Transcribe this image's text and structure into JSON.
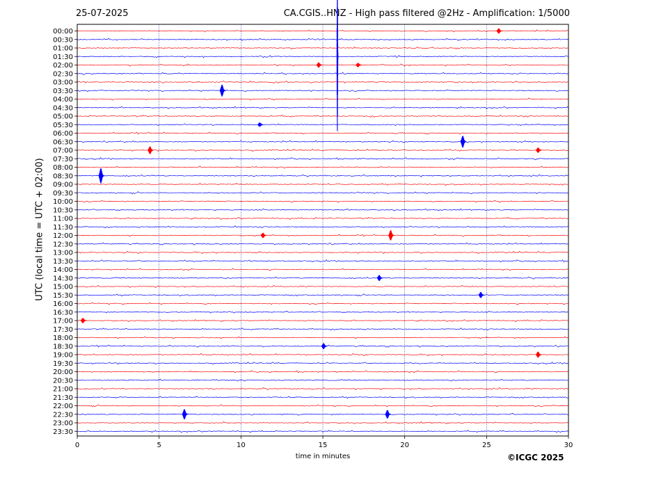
{
  "header": {
    "date": "25-07-2025",
    "title": "CA.CGIS..HNZ - High pass filtered @2Hz - Amplification: 1/5000"
  },
  "footer": {
    "copyright": "©ICGC 2025"
  },
  "colors": {
    "trace_a": "#ff0000",
    "trace_b": "#0000ff",
    "grid": "#000080",
    "frame": "#000000"
  },
  "chart_data": {
    "type": "line",
    "title": "CA.CGIS..HNZ - High pass filtered @2Hz - Amplification: 1/5000",
    "xlabel": "time in minutes",
    "ylabel": "UTC (local time = UTC + 02:00)",
    "xlim": [
      0,
      30
    ],
    "x_ticks": [
      "0",
      "5",
      "10",
      "15",
      "20",
      "25",
      "30"
    ],
    "grid": "vertical dotted at 5-minute intervals",
    "rows": [
      "00:00",
      "00:30",
      "01:00",
      "01:30",
      "02:00",
      "02:30",
      "03:00",
      "03:30",
      "04:00",
      "04:30",
      "05:00",
      "05:30",
      "06:00",
      "06:30",
      "07:00",
      "07:30",
      "08:00",
      "08:30",
      "09:00",
      "09:30",
      "10:00",
      "10:30",
      "11:00",
      "11:30",
      "12:00",
      "12:30",
      "13:00",
      "13:30",
      "14:00",
      "14:30",
      "15:00",
      "15:30",
      "16:00",
      "16:30",
      "17:00",
      "17:30",
      "18:00",
      "18:30",
      "19:00",
      "19:30",
      "20:00",
      "20:30",
      "21:00",
      "21:30",
      "22:00",
      "22:30",
      "23:00",
      "23:30"
    ],
    "row_colors": [
      "red",
      "blue"
    ],
    "events": [
      {
        "row": "00:00",
        "minute": 25.8,
        "amplitude": 0.3
      },
      {
        "row": "01:30",
        "minute": 15.9,
        "amplitude": 9.0
      },
      {
        "row": "02:00",
        "minute": 14.8,
        "amplitude": 0.3
      },
      {
        "row": "02:00",
        "minute": 17.2,
        "amplitude": 0.25
      },
      {
        "row": "03:30",
        "minute": 8.9,
        "amplitude": 0.7
      },
      {
        "row": "05:30",
        "minute": 11.2,
        "amplitude": 0.25
      },
      {
        "row": "06:30",
        "minute": 23.6,
        "amplitude": 0.7
      },
      {
        "row": "07:00",
        "minute": 4.5,
        "amplitude": 0.45
      },
      {
        "row": "07:00",
        "minute": 28.2,
        "amplitude": 0.3
      },
      {
        "row": "08:30",
        "minute": 1.5,
        "amplitude": 0.9
      },
      {
        "row": "12:00",
        "minute": 19.2,
        "amplitude": 0.6
      },
      {
        "row": "12:00",
        "minute": 11.4,
        "amplitude": 0.3
      },
      {
        "row": "14:30",
        "minute": 18.5,
        "amplitude": 0.35
      },
      {
        "row": "15:30",
        "minute": 24.7,
        "amplitude": 0.35
      },
      {
        "row": "17:00",
        "minute": 0.4,
        "amplitude": 0.3
      },
      {
        "row": "18:30",
        "minute": 15.1,
        "amplitude": 0.35
      },
      {
        "row": "19:00",
        "minute": 28.2,
        "amplitude": 0.35
      },
      {
        "row": "22:30",
        "minute": 6.6,
        "amplitude": 0.6
      },
      {
        "row": "22:30",
        "minute": 19.0,
        "amplitude": 0.5
      }
    ]
  }
}
